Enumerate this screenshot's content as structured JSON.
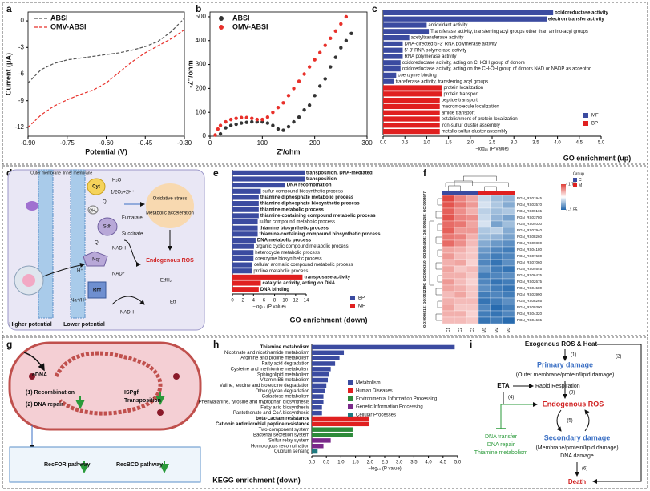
{
  "panels": [
    "a",
    "b",
    "c",
    "d",
    "e",
    "f",
    "g",
    "h",
    "i"
  ],
  "chart_data": [
    {
      "type": "line",
      "line_style": "dashed",
      "legend": "upper left",
      "xlabel": "Potential (V)",
      "ylabel": "Current (μA)",
      "x": [
        -0.9,
        -0.85,
        -0.8,
        -0.75,
        -0.7,
        -0.65,
        -0.6,
        -0.55,
        -0.5,
        -0.45,
        -0.4,
        -0.35,
        -0.3
      ],
      "series": [
        {
          "name": "ABSI",
          "color": "#555555",
          "values": [
            -7,
            -5.5,
            -4.8,
            -4.4,
            -4.2,
            -4.0,
            -3.8,
            -3.6,
            -3.3,
            -2.9,
            -2.3,
            -1.2,
            0.3
          ]
        },
        {
          "name": "OMV-ABSI",
          "color": "#e8302a",
          "values": [
            -12,
            -10.6,
            -9.6,
            -8.9,
            -8.3,
            -7.8,
            -7.0,
            -5.8,
            -4.6,
            -3.6,
            -2.8,
            -2.0,
            -1.0
          ]
        }
      ],
      "xlim": [
        -0.9,
        -0.3
      ],
      "xticks": [
        {
          "value": -0.9,
          "label": "-0.90"
        },
        -0.75,
        {
          "value": -0.6,
          "label": "-0.60"
        },
        -0.45,
        {
          "value": -0.3,
          "label": "-0.30"
        }
      ],
      "ylim": [
        -13,
        1
      ],
      "yticks": [
        0,
        -3,
        -6,
        -9,
        -12
      ]
    },
    {
      "type": "scatter",
      "legend": "upper left",
      "xlabel": "Z'/ohm",
      "ylabel": "-Z''/ohm",
      "series": [
        {
          "name": "ABSI",
          "color": "#333333",
          "x": [
            20,
            30,
            40,
            50,
            60,
            70,
            80,
            90,
            100,
            110,
            120,
            130,
            140,
            150,
            160,
            170,
            180,
            190,
            200,
            210,
            220,
            230,
            240,
            250,
            260,
            270
          ],
          "values": [
            10,
            35,
            45,
            50,
            55,
            58,
            60,
            60,
            60,
            55,
            45,
            30,
            25,
            40,
            60,
            80,
            110,
            130,
            170,
            210,
            240,
            290,
            330,
            370,
            400,
            430
          ]
        },
        {
          "name": "OMV-ABSI",
          "color": "#e8302a",
          "x": [
            10,
            15,
            20,
            30,
            40,
            50,
            60,
            70,
            80,
            90,
            100,
            110,
            120,
            130,
            140,
            150,
            160,
            170,
            180,
            190,
            200,
            210,
            220,
            230,
            240,
            250,
            260
          ],
          "values": [
            5,
            30,
            45,
            60,
            70,
            75,
            78,
            78,
            75,
            70,
            70,
            80,
            100,
            120,
            140,
            170,
            200,
            230,
            260,
            290,
            320,
            350,
            380,
            410,
            440,
            470,
            500
          ]
        }
      ],
      "xlim": [
        0,
        300
      ],
      "xticks": [
        0,
        100,
        200,
        300
      ],
      "ylim": [
        0,
        520
      ],
      "yticks": [
        0,
        100,
        200,
        300,
        400,
        500
      ]
    },
    {
      "type": "hbar",
      "title": "GO enrichment (up)",
      "xlabel": "−log₁₀ (P value)",
      "label_position": "bar_end",
      "legend": "lower right",
      "categories": [
        "oxidoreductase activity",
        "electron transfer activity",
        "antioxidant activity",
        "Transferase activity, transferring acyl groups other than amino-acyl groups",
        "acetyltransferase activity",
        "DNA-directed 5'-3' RNA polymerase activity",
        "5'-3' RNA polymerase activity",
        "RNA polymerase activity",
        "oxidoreductase activity, acting on CH-OH group of donors",
        "oxidoreductase activity, acting on the CH-OH group of donors NAD or NADP as acceptor",
        "coenzyme binding",
        "transferase activity, transferring acyl groups",
        "protein localization",
        "protein transport",
        "peptide transport",
        "macromolecule localization",
        "amide transport",
        "establishment of protein localization",
        "iron-sulfur cluster assembly",
        "metallo-sulfur cluster assembly"
      ],
      "label_colors": [
        "#f0953a",
        "#f0953a",
        "#222",
        "#222",
        "#222",
        "#222",
        "#222",
        "#222",
        "#222",
        "#222",
        "#222",
        "#222",
        "#222",
        "#222",
        "#222",
        "#222",
        "#222",
        "#222",
        "#222",
        "#222"
      ],
      "series": [
        {
          "name": "MF",
          "color": "#3b4ba0",
          "values": [
            3.9,
            3.75,
            1.0,
            1.05,
            0.6,
            0.45,
            0.45,
            0.45,
            0.4,
            0.4,
            0.3,
            0.25,
            null,
            null,
            null,
            null,
            null,
            null,
            null,
            null
          ]
        },
        {
          "name": "BP",
          "color": "#e02020",
          "values": [
            null,
            null,
            null,
            null,
            null,
            null,
            null,
            null,
            null,
            null,
            null,
            null,
            1.35,
            1.35,
            1.3,
            1.3,
            1.3,
            1.3,
            1.3,
            1.3
          ]
        }
      ],
      "xlim": [
        0,
        5
      ],
      "xticks": [
        {
          "value": 0,
          "label": "0.0"
        },
        0.5,
        {
          "value": 1,
          "label": "1.0"
        },
        1.5,
        {
          "value": 2,
          "label": "2.0"
        },
        2.5,
        {
          "value": 3,
          "label": "3.0"
        },
        3.5,
        {
          "value": 4,
          "label": "4.0"
        },
        4.5,
        {
          "value": 5,
          "label": "5.0"
        }
      ]
    },
    {
      "type": "hbar",
      "title": "GO enrichment (down)",
      "xlabel": "−log₁₀ (P value)",
      "label_position": "bar_end",
      "legend": "right",
      "categories": [
        "transposition, DNA-mediated",
        "transposition",
        "DNA recombination",
        "sulfur compound biosynthetic process",
        "thiamine diphosphate metabolic process",
        "thiamine diphosphate biosynthetic process",
        "thiamine metabolic process",
        "thiamine-containing compound metabolic process",
        "sulfur compound metabolic process",
        "thiamine biosynthetic process",
        "thiamine-containing compound biosynthetic process",
        "DNA metabolic process",
        "organic cyclic compound metabolic process",
        "heterocycle metabolic process",
        "coenzyme biosynthetic process",
        "cellular aromatic compound metabolic process",
        "proline metabolic process",
        "transposase activity",
        "catalytic activity, acting on DNA",
        "DNA binding"
      ],
      "label_colors": [
        "#f0953a",
        "#f0953a",
        "#f0953a",
        "#222",
        "#2a6fbf",
        "#2a6fbf",
        "#2a6fbf",
        "#2a6fbf",
        "#222",
        "#2a6fbf",
        "#2a6fbf",
        "#f0953a",
        "#222",
        "#222",
        "#222",
        "#222",
        "#222",
        "#f0953a",
        "#f0953a",
        "#f0953a"
      ],
      "series": [
        {
          "name": "BP",
          "color": "#3b4ba0",
          "values": [
            13.7,
            13.7,
            10,
            5.4,
            5.0,
            5.0,
            5.0,
            5.0,
            4.8,
            4.8,
            4.8,
            4.4,
            4.1,
            4.0,
            4.0,
            3.8,
            3.7,
            null,
            null,
            null
          ]
        },
        {
          "name": "MF",
          "color": "#e02020",
          "values": [
            null,
            null,
            null,
            null,
            null,
            null,
            null,
            null,
            null,
            null,
            null,
            null,
            null,
            null,
            null,
            null,
            null,
            13.3,
            5.4,
            5.0
          ]
        }
      ],
      "xlim": [
        0,
        14
      ],
      "xticks": [
        0,
        2,
        4,
        6,
        8,
        10,
        12,
        14
      ]
    },
    {
      "type": "heatmap",
      "ylabel": "GO:0006313; GO:0032196; GO:0006310; GO:0004803; GO:0006259; GO:0003677",
      "columns": [
        "C1",
        "C2",
        "C3",
        "M1",
        "M2",
        "M3"
      ],
      "groups": {
        "title": "Group",
        "names": [
          "C",
          "M"
        ],
        "colors": [
          "#3b4ba0",
          "#e02020"
        ],
        "sizes": [
          3,
          3
        ]
      },
      "rows": [
        "PGN_RS01945",
        "PGN_RS03570",
        "PGN_RS09165",
        "PGN_RS03780",
        "PGN_RS04030",
        "PGN_RS07940",
        "PGN_RS08260",
        "PGN_RS09800",
        "PGN_RS04180",
        "PGN_RS07680",
        "PGN_RS07060",
        "PGN_RS04645",
        "PGN_RS06425",
        "PGN_RS02675",
        "PGN_RS04580",
        "PGN_RS03990",
        "PGN_RS08265",
        "PGN_RS09300",
        "PGN_RS04320",
        "PGN_RS04665"
      ],
      "values": [
        [
          1.7,
          1.2,
          0.9,
          -0.3,
          -0.6,
          -0.7
        ],
        [
          1.6,
          1.3,
          1.0,
          -0.2,
          -0.5,
          -0.8
        ],
        [
          1.5,
          1.1,
          0.8,
          -0.4,
          -0.6,
          -0.5
        ],
        [
          1.6,
          1.2,
          1.1,
          -0.3,
          -0.7,
          -0.9
        ],
        [
          1.4,
          1.3,
          0.9,
          -0.2,
          -0.9,
          -0.6
        ],
        [
          1.5,
          1.0,
          1.0,
          -0.5,
          -0.4,
          -0.8
        ],
        [
          1.3,
          1.2,
          0.8,
          -0.6,
          -0.7,
          -0.9
        ],
        [
          1.4,
          1.1,
          0.7,
          -0.8,
          -1.0,
          -1.1
        ],
        [
          0.9,
          0.8,
          0.6,
          -1.0,
          -1.2,
          -1.3
        ],
        [
          1.0,
          0.7,
          0.6,
          -1.1,
          -1.3,
          -1.2
        ],
        [
          0.8,
          0.9,
          0.5,
          -1.2,
          -1.4,
          -1.1
        ],
        [
          0.9,
          0.6,
          0.7,
          -1.0,
          -1.3,
          -1.4
        ],
        [
          0.8,
          0.8,
          0.6,
          -1.3,
          -1.2,
          -1.1
        ],
        [
          1.0,
          0.7,
          0.5,
          -1.2,
          -1.4,
          -1.3
        ],
        [
          0.9,
          0.8,
          0.6,
          -1.1,
          -1.3,
          -1.4
        ],
        [
          0.7,
          0.9,
          0.6,
          -1.3,
          -1.2,
          -1.3
        ],
        [
          0.8,
          0.7,
          0.7,
          -1.4,
          -1.3,
          -1.1
        ],
        [
          0.9,
          0.6,
          0.6,
          -1.2,
          -1.5,
          -1.3
        ],
        [
          0.8,
          0.8,
          0.5,
          -1.3,
          -1.4,
          -1.2
        ],
        [
          0.7,
          0.7,
          0.6,
          -1.4,
          -1.3,
          -1.5
        ]
      ],
      "colorbar": {
        "lim": [
          -1.55,
          1.77
        ],
        "ticks": [
          1.77,
          -1.55
        ],
        "colors": [
          "#2166ac",
          "#ffffff",
          "#e0413a"
        ]
      }
    },
    {
      "type": "hbar",
      "title": "KEGG enrichment (down)",
      "xlabel": "−log₁₀ (P value)",
      "label_position": "axis",
      "legend": "center",
      "categories": [
        "Thiamine metabolism",
        "Nicotinate and nicotinamide metabolism",
        "Arginine and proline metabolism",
        "Fatty acid degradation",
        "Cysteine and methionine metabolism",
        "Sphingolipid metabolism",
        "Vitamin B6 metabolism",
        "Valine, leucine and isoleucine degradation",
        "Other glycan degradation",
        "Galactose metabolism",
        "Phenylalanine, tyrosine and tryptophan biosynthesis",
        "Fatty acid biosynthesis",
        "Pantothenate and CoA biosynthesis",
        "beta-Lactam resistance",
        "Cationic antimicrobial peptide resistance",
        "Two-component system",
        "Bacterial secretion system",
        "Sulfur relay system",
        "Homologous recombination",
        "Quorum sensing"
      ],
      "label_colors": [
        "#2a6fbf",
        "#222",
        "#222",
        "#222",
        "#222",
        "#222",
        "#222",
        "#222",
        "#222",
        "#222",
        "#222",
        "#222",
        "#222",
        "#f0953a",
        "#f0953a",
        "#222",
        "#222",
        "#222",
        "#222",
        "#222"
      ],
      "series": [
        {
          "name": "Metabolism",
          "color": "#3b4ba0",
          "values": [
            4.9,
            1.1,
            0.95,
            0.8,
            0.65,
            0.6,
            0.55,
            0.5,
            0.45,
            0.4,
            0.4,
            0.35,
            0.35,
            null,
            null,
            null,
            null,
            null,
            null,
            null
          ]
        },
        {
          "name": "Human Diseases",
          "color": "#e02020",
          "values": [
            null,
            null,
            null,
            null,
            null,
            null,
            null,
            null,
            null,
            null,
            null,
            null,
            null,
            1.95,
            1.95,
            null,
            null,
            null,
            null,
            null
          ]
        },
        {
          "name": "Environmental Information Processing",
          "color": "#2e8b3a",
          "values": [
            null,
            null,
            null,
            null,
            null,
            null,
            null,
            null,
            null,
            null,
            null,
            null,
            null,
            null,
            null,
            1.4,
            1.4,
            null,
            null,
            null
          ]
        },
        {
          "name": "Genetic Information Processing",
          "color": "#7a2a8a",
          "values": [
            null,
            null,
            null,
            null,
            null,
            null,
            null,
            null,
            null,
            null,
            null,
            null,
            null,
            null,
            null,
            null,
            null,
            0.65,
            0.4,
            null
          ]
        },
        {
          "name": "Cellular Processes",
          "color": "#1f7a80",
          "values": [
            null,
            null,
            null,
            null,
            null,
            null,
            null,
            null,
            null,
            null,
            null,
            null,
            null,
            null,
            null,
            null,
            null,
            null,
            null,
            0.2
          ]
        }
      ],
      "xlim": [
        0,
        5
      ],
      "xticks": [
        {
          "value": 0,
          "label": "0.0"
        },
        0.5,
        {
          "value": 1,
          "label": "1.0"
        },
        1.5,
        {
          "value": 2,
          "label": "2.0"
        },
        2.5,
        {
          "value": 3,
          "label": "3.0"
        },
        3.5,
        {
          "value": 4,
          "label": "4.0"
        },
        4.5,
        {
          "value": 5,
          "label": "5.0"
        }
      ]
    }
  ],
  "diagrams": {
    "d": {
      "labels": [
        "Outer membrane",
        "Inner membrane",
        "Cyt",
        "H₂O",
        "1/2O₂+2H⁺",
        "Q",
        "QH₂",
        "Sdh",
        "Fumarate",
        "Succinate",
        "Q",
        "NADH",
        "Nqr",
        "NAD⁺",
        "H⁺",
        "Rnf",
        "EtfH₂",
        "Etf",
        "NADH",
        "Na⁺/H⁺",
        "Oxidative stress",
        "Metabolic acceleration",
        "Endogenous ROS",
        "Higher potential",
        "Lower potential"
      ]
    },
    "g": {
      "labels": [
        "eDNA",
        "(1)  Recombination",
        "(2)  DNA repair",
        "ISPgf",
        "Transposition",
        "RecFOR pathway",
        "RecBCD pathway"
      ]
    },
    "i": {
      "labels": [
        "Exogenous ROS & Heat",
        "(1)",
        "(2)",
        "Primary damage",
        "(Outer membrane/protein/lipid damage)",
        "ETA",
        "Rapid Respiration",
        "(3)",
        "(4)",
        "Endogenous ROS",
        "(5)",
        "Secondary damage",
        "(Membrane/protein/lipid damage)",
        "DNA damage",
        "(6)",
        "Death",
        "DNA transfer",
        "DNA repair",
        "Thiamine metabolism"
      ]
    }
  }
}
